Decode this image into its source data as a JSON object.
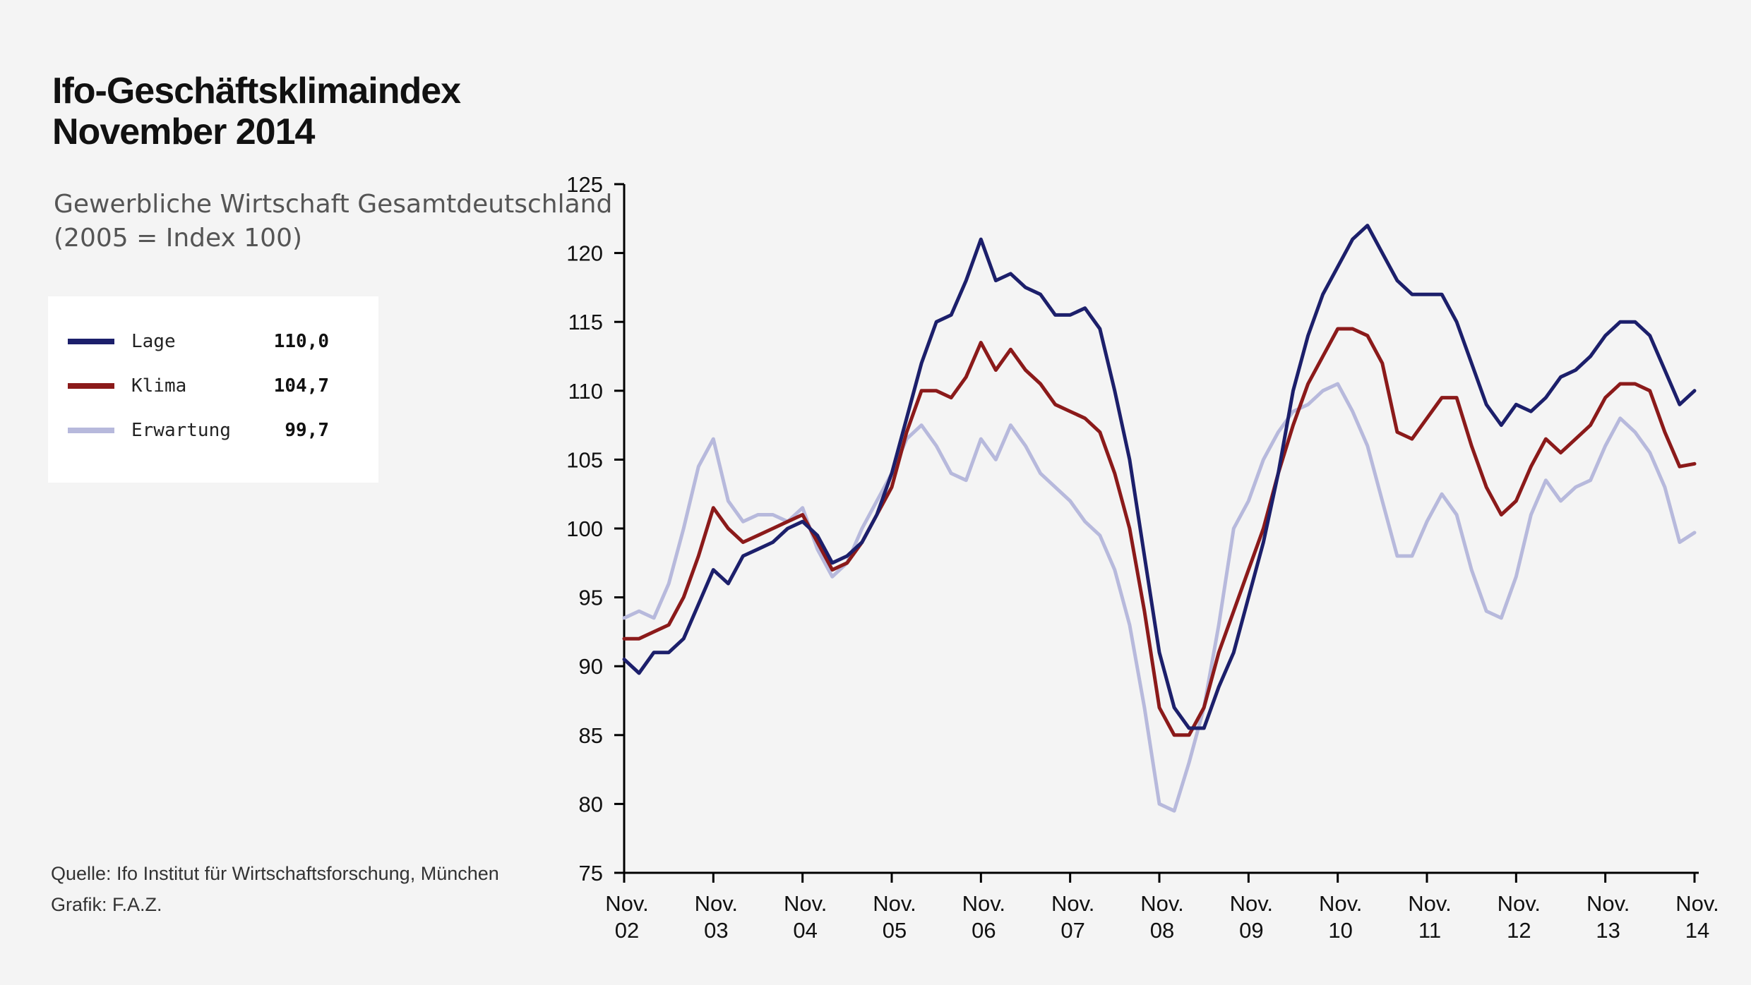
{
  "title_line1": "Ifo-Geschäftsklimaindex",
  "title_line2": "November 2014",
  "subtitle_line1": "Gewerbliche Wirtschaft Gesamtdeutschland",
  "subtitle_line2": "(2005 = Index 100)",
  "source_line1": "Quelle: Ifo Institut für Wirtschaftsforschung, München",
  "source_line2": "Grafik: F.A.Z.",
  "legend": [
    {
      "name": "Lage",
      "value": "110,0",
      "color": "#1c1f6b"
    },
    {
      "name": "Klima",
      "value": "104,7",
      "color": "#8b1a1a"
    },
    {
      "name": "Erwartung",
      "value": "99,7",
      "color": "#b7b9dc"
    }
  ],
  "chart_data": {
    "type": "line",
    "x_tick_labels": [
      [
        "Nov.",
        "02"
      ],
      [
        "Nov.",
        "03"
      ],
      [
        "Nov.",
        "04"
      ],
      [
        "Nov.",
        "05"
      ],
      [
        "Nov.",
        "06"
      ],
      [
        "Nov.",
        "07"
      ],
      [
        "Nov.",
        "08"
      ],
      [
        "Nov.",
        "09"
      ],
      [
        "Nov.",
        "10"
      ],
      [
        "Nov.",
        "11"
      ],
      [
        "Nov.",
        "12"
      ],
      [
        "Nov.",
        "13"
      ],
      [
        "Nov.",
        "14"
      ]
    ],
    "x_range": [
      "2002-11",
      "2014-11"
    ],
    "ylim": [
      75,
      125
    ],
    "y_ticks": [
      75,
      80,
      85,
      90,
      95,
      100,
      105,
      110,
      115,
      120,
      125
    ],
    "grid": false,
    "series": [
      {
        "name": "Lage",
        "color": "#1c1f6b",
        "points": [
          [
            "2002-11",
            90.5
          ],
          [
            "2003-01",
            89.5
          ],
          [
            "2003-03",
            91.0
          ],
          [
            "2003-05",
            91.0
          ],
          [
            "2003-07",
            92.0
          ],
          [
            "2003-09",
            94.5
          ],
          [
            "2003-11",
            97.0
          ],
          [
            "2004-01",
            96.0
          ],
          [
            "2004-03",
            98.0
          ],
          [
            "2004-05",
            98.5
          ],
          [
            "2004-07",
            99.0
          ],
          [
            "2004-09",
            100.0
          ],
          [
            "2004-11",
            100.5
          ],
          [
            "2005-01",
            99.5
          ],
          [
            "2005-03",
            97.5
          ],
          [
            "2005-05",
            98.0
          ],
          [
            "2005-07",
            99.0
          ],
          [
            "2005-09",
            101.0
          ],
          [
            "2005-11",
            104.0
          ],
          [
            "2006-01",
            108.0
          ],
          [
            "2006-03",
            112.0
          ],
          [
            "2006-05",
            115.0
          ],
          [
            "2006-07",
            115.5
          ],
          [
            "2006-09",
            118.0
          ],
          [
            "2006-11",
            121.0
          ],
          [
            "2007-01",
            118.0
          ],
          [
            "2007-03",
            118.5
          ],
          [
            "2007-05",
            117.5
          ],
          [
            "2007-07",
            117.0
          ],
          [
            "2007-09",
            115.5
          ],
          [
            "2007-11",
            115.5
          ],
          [
            "2008-01",
            116.0
          ],
          [
            "2008-03",
            114.5
          ],
          [
            "2008-05",
            110.0
          ],
          [
            "2008-07",
            105.0
          ],
          [
            "2008-09",
            98.0
          ],
          [
            "2008-11",
            91.0
          ],
          [
            "2009-01",
            87.0
          ],
          [
            "2009-03",
            85.5
          ],
          [
            "2009-05",
            85.5
          ],
          [
            "2009-07",
            88.5
          ],
          [
            "2009-09",
            91.0
          ],
          [
            "2009-11",
            95.0
          ],
          [
            "2010-01",
            99.0
          ],
          [
            "2010-03",
            104.0
          ],
          [
            "2010-05",
            110.0
          ],
          [
            "2010-07",
            114.0
          ],
          [
            "2010-09",
            117.0
          ],
          [
            "2010-11",
            119.0
          ],
          [
            "2011-01",
            121.0
          ],
          [
            "2011-03",
            122.0
          ],
          [
            "2011-05",
            120.0
          ],
          [
            "2011-07",
            118.0
          ],
          [
            "2011-09",
            117.0
          ],
          [
            "2011-11",
            117.0
          ],
          [
            "2012-01",
            117.0
          ],
          [
            "2012-03",
            115.0
          ],
          [
            "2012-05",
            112.0
          ],
          [
            "2012-07",
            109.0
          ],
          [
            "2012-09",
            107.5
          ],
          [
            "2012-11",
            109.0
          ],
          [
            "2013-01",
            108.5
          ],
          [
            "2013-03",
            109.5
          ],
          [
            "2013-05",
            111.0
          ],
          [
            "2013-07",
            111.5
          ],
          [
            "2013-09",
            112.5
          ],
          [
            "2013-11",
            114.0
          ],
          [
            "2014-01",
            115.0
          ],
          [
            "2014-03",
            115.0
          ],
          [
            "2014-05",
            114.0
          ],
          [
            "2014-07",
            111.5
          ],
          [
            "2014-09",
            109.0
          ],
          [
            "2014-11",
            110.0
          ]
        ]
      },
      {
        "name": "Klima",
        "color": "#8b1a1a",
        "points": [
          [
            "2002-11",
            92.0
          ],
          [
            "2003-01",
            92.0
          ],
          [
            "2003-03",
            92.5
          ],
          [
            "2003-05",
            93.0
          ],
          [
            "2003-07",
            95.0
          ],
          [
            "2003-09",
            98.0
          ],
          [
            "2003-11",
            101.5
          ],
          [
            "2004-01",
            100.0
          ],
          [
            "2004-03",
            99.0
          ],
          [
            "2004-05",
            99.5
          ],
          [
            "2004-07",
            100.0
          ],
          [
            "2004-09",
            100.5
          ],
          [
            "2004-11",
            101.0
          ],
          [
            "2005-01",
            99.0
          ],
          [
            "2005-03",
            97.0
          ],
          [
            "2005-05",
            97.5
          ],
          [
            "2005-07",
            99.0
          ],
          [
            "2005-09",
            101.0
          ],
          [
            "2005-11",
            103.0
          ],
          [
            "2006-01",
            107.0
          ],
          [
            "2006-03",
            110.0
          ],
          [
            "2006-05",
            110.0
          ],
          [
            "2006-07",
            109.5
          ],
          [
            "2006-09",
            111.0
          ],
          [
            "2006-11",
            113.5
          ],
          [
            "2007-01",
            111.5
          ],
          [
            "2007-03",
            113.0
          ],
          [
            "2007-05",
            111.5
          ],
          [
            "2007-07",
            110.5
          ],
          [
            "2007-09",
            109.0
          ],
          [
            "2007-11",
            108.5
          ],
          [
            "2008-01",
            108.0
          ],
          [
            "2008-03",
            107.0
          ],
          [
            "2008-05",
            104.0
          ],
          [
            "2008-07",
            100.0
          ],
          [
            "2008-09",
            94.0
          ],
          [
            "2008-11",
            87.0
          ],
          [
            "2009-01",
            85.0
          ],
          [
            "2009-03",
            85.0
          ],
          [
            "2009-05",
            87.0
          ],
          [
            "2009-07",
            91.0
          ],
          [
            "2009-09",
            94.0
          ],
          [
            "2009-11",
            97.0
          ],
          [
            "2010-01",
            100.0
          ],
          [
            "2010-03",
            104.0
          ],
          [
            "2010-05",
            107.5
          ],
          [
            "2010-07",
            110.5
          ],
          [
            "2010-09",
            112.5
          ],
          [
            "2010-11",
            114.5
          ],
          [
            "2011-01",
            114.5
          ],
          [
            "2011-03",
            114.0
          ],
          [
            "2011-05",
            112.0
          ],
          [
            "2011-07",
            107.0
          ],
          [
            "2011-09",
            106.5
          ],
          [
            "2011-11",
            108.0
          ],
          [
            "2012-01",
            109.5
          ],
          [
            "2012-03",
            109.5
          ],
          [
            "2012-05",
            106.0
          ],
          [
            "2012-07",
            103.0
          ],
          [
            "2012-09",
            101.0
          ],
          [
            "2012-11",
            102.0
          ],
          [
            "2013-01",
            104.5
          ],
          [
            "2013-03",
            106.5
          ],
          [
            "2013-05",
            105.5
          ],
          [
            "2013-07",
            106.5
          ],
          [
            "2013-09",
            107.5
          ],
          [
            "2013-11",
            109.5
          ],
          [
            "2014-01",
            110.5
          ],
          [
            "2014-03",
            110.5
          ],
          [
            "2014-05",
            110.0
          ],
          [
            "2014-07",
            107.0
          ],
          [
            "2014-09",
            104.5
          ],
          [
            "2014-11",
            104.7
          ]
        ]
      },
      {
        "name": "Erwartung",
        "color": "#b7b9dc",
        "points": [
          [
            "2002-11",
            93.5
          ],
          [
            "2003-01",
            94.0
          ],
          [
            "2003-03",
            93.5
          ],
          [
            "2003-05",
            96.0
          ],
          [
            "2003-07",
            100.0
          ],
          [
            "2003-09",
            104.5
          ],
          [
            "2003-11",
            106.5
          ],
          [
            "2004-01",
            102.0
          ],
          [
            "2004-03",
            100.5
          ],
          [
            "2004-05",
            101.0
          ],
          [
            "2004-07",
            101.0
          ],
          [
            "2004-09",
            100.5
          ],
          [
            "2004-11",
            101.5
          ],
          [
            "2005-01",
            98.5
          ],
          [
            "2005-03",
            96.5
          ],
          [
            "2005-05",
            97.5
          ],
          [
            "2005-07",
            100.0
          ],
          [
            "2005-09",
            102.0
          ],
          [
            "2005-11",
            104.0
          ],
          [
            "2006-01",
            106.5
          ],
          [
            "2006-03",
            107.5
          ],
          [
            "2006-05",
            106.0
          ],
          [
            "2006-07",
            104.0
          ],
          [
            "2006-09",
            103.5
          ],
          [
            "2006-11",
            106.5
          ],
          [
            "2007-01",
            105.0
          ],
          [
            "2007-03",
            107.5
          ],
          [
            "2007-05",
            106.0
          ],
          [
            "2007-07",
            104.0
          ],
          [
            "2007-09",
            103.0
          ],
          [
            "2007-11",
            102.0
          ],
          [
            "2008-01",
            100.5
          ],
          [
            "2008-03",
            99.5
          ],
          [
            "2008-05",
            97.0
          ],
          [
            "2008-07",
            93.0
          ],
          [
            "2008-09",
            87.0
          ],
          [
            "2008-11",
            80.0
          ],
          [
            "2009-01",
            79.5
          ],
          [
            "2009-03",
            83.0
          ],
          [
            "2009-05",
            87.0
          ],
          [
            "2009-07",
            93.0
          ],
          [
            "2009-09",
            100.0
          ],
          [
            "2009-11",
            102.0
          ],
          [
            "2010-01",
            105.0
          ],
          [
            "2010-03",
            107.0
          ],
          [
            "2010-05",
            108.5
          ],
          [
            "2010-07",
            109.0
          ],
          [
            "2010-09",
            110.0
          ],
          [
            "2010-11",
            110.5
          ],
          [
            "2011-01",
            108.5
          ],
          [
            "2011-03",
            106.0
          ],
          [
            "2011-05",
            102.0
          ],
          [
            "2011-07",
            98.0
          ],
          [
            "2011-09",
            98.0
          ],
          [
            "2011-11",
            100.5
          ],
          [
            "2012-01",
            102.5
          ],
          [
            "2012-03",
            101.0
          ],
          [
            "2012-05",
            97.0
          ],
          [
            "2012-07",
            94.0
          ],
          [
            "2012-09",
            93.5
          ],
          [
            "2012-11",
            96.5
          ],
          [
            "2013-01",
            101.0
          ],
          [
            "2013-03",
            103.5
          ],
          [
            "2013-05",
            102.0
          ],
          [
            "2013-07",
            103.0
          ],
          [
            "2013-09",
            103.5
          ],
          [
            "2013-11",
            106.0
          ],
          [
            "2014-01",
            108.0
          ],
          [
            "2014-03",
            107.0
          ],
          [
            "2014-05",
            105.5
          ],
          [
            "2014-07",
            103.0
          ],
          [
            "2014-09",
            99.0
          ],
          [
            "2014-11",
            99.7
          ]
        ]
      }
    ]
  }
}
